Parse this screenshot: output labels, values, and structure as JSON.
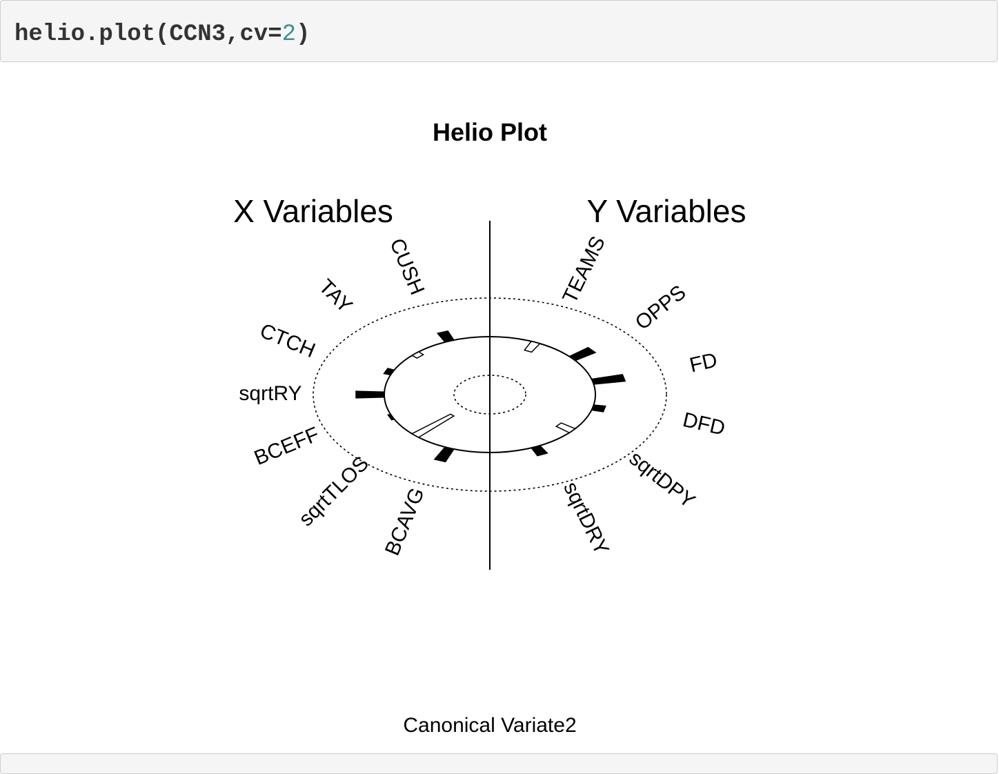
{
  "code": {
    "prefix": "helio.plot(CCN3,cv=",
    "number": "2",
    "suffix": ")"
  },
  "chart_data": {
    "type": "helio",
    "title": "Helio Plot",
    "subtitle": "Canonical Variate2",
    "left_header": "X Variables",
    "right_header": "Y Variables",
    "left_group": {
      "name": "X Variables",
      "labels": [
        "CUSH",
        "TAY",
        "CTCH",
        "sqrtRY",
        "BCEFF",
        "sqrtTLOS",
        "BCAVG"
      ],
      "values": [
        0.25,
        -0.1,
        0.1,
        0.4,
        0.04,
        -0.75,
        0.35
      ]
    },
    "right_group": {
      "name": "Y Variables",
      "labels": [
        "TEAMS",
        "OPPS",
        "FD",
        "DFD",
        "sqrtDPY",
        "sqrtDRY"
      ],
      "values": [
        -0.25,
        0.35,
        0.45,
        0.17,
        -0.25,
        0.22
      ]
    },
    "scale": {
      "min": -1,
      "max": 1,
      "dotted_circles": [
        -1,
        1
      ]
    },
    "colors": {
      "positive": "#000000",
      "negative": "#ffffff",
      "outline": "#000000"
    }
  }
}
